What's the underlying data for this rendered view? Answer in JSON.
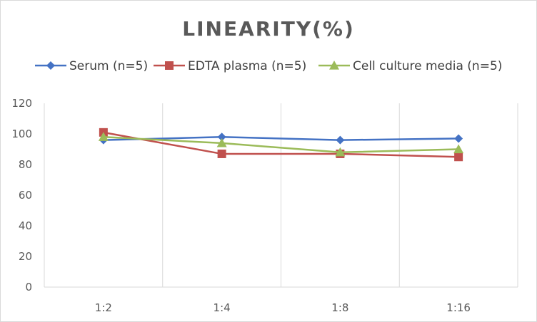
{
  "chart_data": {
    "type": "line",
    "title": "LINEARITY(%)",
    "xlabel": "",
    "ylabel": "",
    "categories": [
      "1:2",
      "1:4",
      "1:8",
      "1:16"
    ],
    "ylim": [
      0,
      120
    ],
    "yticks": [
      0,
      20,
      40,
      60,
      80,
      100,
      120
    ],
    "grid": "vertical",
    "legend": "top",
    "series": [
      {
        "name": "Serum (n=5)",
        "color": "#4472c4",
        "marker": "diamond",
        "values": [
          96,
          98,
          96,
          97
        ]
      },
      {
        "name": "EDTA plasma (n=5)",
        "color": "#c0504d",
        "marker": "square",
        "values": [
          101,
          87,
          87,
          85
        ]
      },
      {
        "name": "Cell culture media (n=5)",
        "color": "#9bbb59",
        "marker": "triangle",
        "values": [
          98,
          94,
          88,
          90
        ]
      }
    ]
  }
}
